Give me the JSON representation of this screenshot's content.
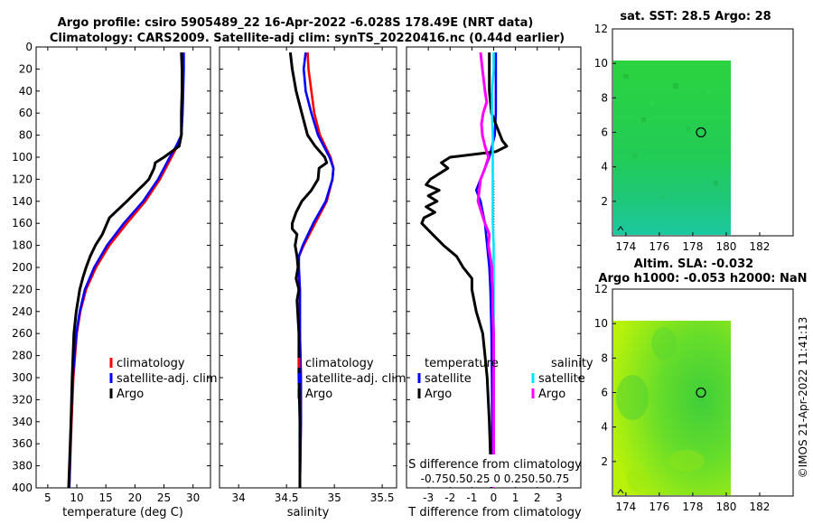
{
  "title_line1": "Argo profile: csiro 5905489_22 16-Apr-2022 -6.028S 178.49E (NRT data)",
  "title_line2": "Climatology: CARS2009. Satellite-adj clim: synTS_20220416.nc (0.44d earlier)",
  "watermark": "©IMOS 21-Apr-2022 11:41:13",
  "colors": {
    "climatology": "#ff0000",
    "satellite": "#0000ff",
    "argo": "#000000",
    "sat_salinity": "#00e5ff",
    "argo_salinity": "#ff00ff"
  },
  "chart_data": [
    {
      "type": "line",
      "name": "temperature-panel",
      "xlabel": "temperature (deg C)",
      "xlim": [
        3,
        33
      ],
      "ylim": [
        0,
        400
      ],
      "xticks": [
        5,
        10,
        15,
        20,
        25,
        30
      ],
      "yticks": [
        0,
        20,
        40,
        60,
        80,
        100,
        120,
        140,
        160,
        180,
        200,
        220,
        240,
        260,
        280,
        300,
        320,
        340,
        360,
        380,
        400
      ],
      "legend": [
        "climatology",
        "satellite-adj. clim",
        "Argo"
      ],
      "series": [
        {
          "name": "climatology",
          "color": "#ff0000",
          "depth": [
            5,
            20,
            40,
            60,
            80,
            90,
            100,
            110,
            120,
            140,
            160,
            180,
            200,
            220,
            240,
            260,
            300,
            340,
            400
          ],
          "values": [
            28.3,
            28.3,
            28.2,
            28.1,
            28.0,
            27.3,
            26.3,
            25.3,
            24.3,
            21.8,
            18.6,
            15.6,
            13.3,
            11.6,
            10.6,
            10.0,
            9.4,
            9.1,
            8.7
          ]
        },
        {
          "name": "satellite-adj. clim",
          "color": "#0000ff",
          "depth": [
            5,
            20,
            40,
            60,
            80,
            90,
            100,
            110,
            120,
            140,
            160,
            180,
            200,
            220,
            240,
            260,
            300,
            340,
            400
          ],
          "values": [
            28.4,
            28.4,
            28.3,
            28.2,
            28.0,
            27.1,
            26.0,
            25.0,
            24.0,
            21.4,
            18.1,
            15.2,
            13.0,
            11.4,
            10.5,
            9.9,
            9.3,
            9.0,
            8.7
          ]
        },
        {
          "name": "Argo",
          "color": "#000000",
          "depth": [
            5,
            20,
            40,
            60,
            80,
            90,
            100,
            105,
            110,
            120,
            125,
            130,
            140,
            150,
            155,
            160,
            170,
            180,
            190,
            200,
            210,
            220,
            240,
            260,
            300,
            340,
            400
          ],
          "values": [
            28.0,
            28.1,
            28.1,
            28.0,
            28.0,
            27.6,
            25.0,
            23.5,
            23.3,
            22.4,
            21.5,
            20.5,
            18.6,
            16.6,
            15.6,
            15.2,
            14.4,
            13.2,
            12.3,
            11.6,
            11.0,
            10.5,
            9.9,
            9.5,
            9.2,
            9.0,
            8.6
          ]
        }
      ]
    },
    {
      "type": "line",
      "name": "salinity-panel",
      "xlabel": "salinity",
      "xlim": [
        33.8,
        35.65
      ],
      "ylim": [
        0,
        400
      ],
      "xticks": [
        34,
        34.5,
        35,
        35.5
      ],
      "yticks": [
        0,
        20,
        40,
        60,
        80,
        100,
        120,
        140,
        160,
        180,
        200,
        220,
        240,
        260,
        280,
        300,
        320,
        340,
        360,
        380,
        400
      ],
      "legend": [
        "climatology",
        "satellite-adj. clim",
        "Argo"
      ],
      "series": [
        {
          "name": "climatology",
          "color": "#ff0000",
          "depth": [
            5,
            20,
            40,
            60,
            80,
            100,
            110,
            120,
            140,
            160,
            180,
            190,
            200,
            220,
            260,
            300,
            340,
            400
          ],
          "values": [
            34.72,
            34.73,
            34.76,
            34.79,
            34.85,
            34.96,
            34.99,
            34.98,
            34.92,
            34.8,
            34.68,
            34.63,
            34.62,
            34.64,
            34.64,
            34.65,
            34.65,
            34.64
          ]
        },
        {
          "name": "satellite-adj. clim",
          "color": "#0000ff",
          "depth": [
            5,
            20,
            40,
            60,
            80,
            100,
            110,
            120,
            140,
            160,
            180,
            190,
            200,
            220,
            260,
            300,
            340,
            400
          ],
          "values": [
            34.7,
            34.68,
            34.7,
            34.76,
            34.83,
            34.95,
            34.99,
            34.98,
            34.91,
            34.78,
            34.67,
            34.63,
            34.63,
            34.64,
            34.64,
            34.65,
            34.65,
            34.64
          ]
        },
        {
          "name": "Argo",
          "color": "#000000",
          "depth": [
            5,
            20,
            40,
            60,
            80,
            90,
            100,
            105,
            110,
            120,
            130,
            140,
            150,
            160,
            165,
            170,
            180,
            190,
            200,
            210,
            220,
            230,
            260,
            300,
            340,
            400
          ],
          "values": [
            34.54,
            34.56,
            34.6,
            34.66,
            34.72,
            34.8,
            34.9,
            34.92,
            34.84,
            34.83,
            34.76,
            34.66,
            34.6,
            34.56,
            34.56,
            34.61,
            34.59,
            34.61,
            34.62,
            34.6,
            34.63,
            34.61,
            34.63,
            34.63,
            34.64,
            34.64
          ]
        }
      ]
    },
    {
      "type": "line",
      "name": "difference-panel",
      "xlabel": "T difference from climatology",
      "top_axis_label": "S difference from climatology",
      "top_ticks": [
        -0.75,
        -0.5,
        -0.25,
        0,
        0.25,
        0.5,
        0.75
      ],
      "top_tick_text": "-0.750.50.25  0  0.250.50.75",
      "xlim": [
        -4,
        4
      ],
      "ylim": [
        0,
        400
      ],
      "xticks": [
        -3,
        -2,
        -1,
        0,
        1,
        2,
        3
      ],
      "yticks": [
        0,
        20,
        40,
        60,
        80,
        100,
        120,
        140,
        160,
        180,
        200,
        220,
        240,
        260,
        280,
        300,
        320,
        340,
        360,
        380,
        400
      ],
      "legend_temperature_title": "temperature",
      "legend_salinity_title": "salinity",
      "legend_temperature": [
        "satellite",
        "Argo"
      ],
      "legend_salinity": [
        "satellite",
        "Argo"
      ],
      "series": [
        {
          "name": "T satellite",
          "color": "#0000ff",
          "depth": [
            5,
            20,
            40,
            60,
            80,
            100,
            110,
            120,
            130,
            140,
            150,
            160,
            180,
            200,
            220,
            260,
            300,
            400
          ],
          "values": [
            0.1,
            0.1,
            0.1,
            0.1,
            0.05,
            -0.2,
            -0.4,
            -0.6,
            -0.8,
            -0.6,
            -0.5,
            -0.4,
            -0.3,
            -0.2,
            -0.15,
            -0.1,
            -0.08,
            -0.05
          ]
        },
        {
          "name": "T Argo",
          "color": "#000000",
          "depth": [
            5,
            20,
            40,
            60,
            75,
            85,
            90,
            95,
            100,
            105,
            110,
            115,
            120,
            125,
            130,
            135,
            140,
            145,
            150,
            155,
            160,
            170,
            180,
            190,
            200,
            210,
            220,
            240,
            260,
            280,
            300,
            340,
            400
          ],
          "values": [
            -0.2,
            -0.2,
            -0.2,
            -0.1,
            0.2,
            0.4,
            0.6,
            0.1,
            -2.0,
            -2.4,
            -2.1,
            -2.5,
            -2.9,
            -3.1,
            -2.5,
            -3.0,
            -2.6,
            -3.1,
            -2.7,
            -3.2,
            -3.3,
            -2.8,
            -2.3,
            -1.7,
            -1.4,
            -1.0,
            -1.0,
            -0.8,
            -0.5,
            -0.4,
            -0.3,
            -0.2,
            -0.1
          ]
        },
        {
          "name": "S satellite",
          "color": "#00e5ff",
          "depth": [
            5,
            20,
            40,
            60,
            80,
            100,
            120,
            140,
            160,
            180,
            200,
            220,
            260,
            300,
            400
          ],
          "values": [
            0.0,
            0.0,
            -0.02,
            -0.02,
            -0.01,
            -0.01,
            -0.01,
            -0.01,
            -0.01,
            0.0,
            0.0,
            0.0,
            0.0,
            0.0,
            0.0
          ]
        },
        {
          "name": "S Argo",
          "color": "#ff00ff",
          "depth": [
            5,
            20,
            40,
            50,
            60,
            70,
            80,
            90,
            100,
            110,
            120,
            140,
            160,
            170,
            180,
            200,
            210,
            220,
            240,
            260,
            300,
            400
          ],
          "values": [
            -0.15,
            -0.13,
            -0.1,
            -0.08,
            -0.12,
            -0.14,
            -0.13,
            -0.1,
            -0.06,
            -0.1,
            -0.15,
            -0.18,
            -0.1,
            -0.05,
            -0.06,
            -0.02,
            -0.02,
            -0.01,
            -0.01,
            0.0,
            0.0,
            0.0
          ]
        }
      ]
    },
    {
      "type": "heatmap",
      "name": "sst-map",
      "title": "sat. SST: 28.5 Argo: 28",
      "xlim": [
        173.2,
        184
      ],
      "ylim": [
        0,
        12
      ],
      "xticks": [
        174,
        176,
        178,
        180,
        182
      ],
      "yticks": [
        2,
        4,
        6,
        8,
        10,
        12
      ],
      "data_extent_x": [
        173.2,
        180.2
      ],
      "data_extent_y": [
        0,
        10.1
      ],
      "float_position": [
        178.49,
        6.0
      ]
    },
    {
      "type": "heatmap",
      "name": "sla-map",
      "title": "Altim. SLA: -0.032",
      "subtitle": "Argo h1000: -0.053 h2000: NaN",
      "xlim": [
        173.2,
        184
      ],
      "ylim": [
        0,
        12
      ],
      "xticks": [
        174,
        176,
        178,
        180,
        182
      ],
      "yticks": [
        2,
        4,
        6,
        8,
        10,
        12
      ],
      "data_extent_x": [
        173.2,
        180.2
      ],
      "data_extent_y": [
        0,
        10.1
      ],
      "float_position": [
        178.49,
        6.0
      ]
    }
  ]
}
